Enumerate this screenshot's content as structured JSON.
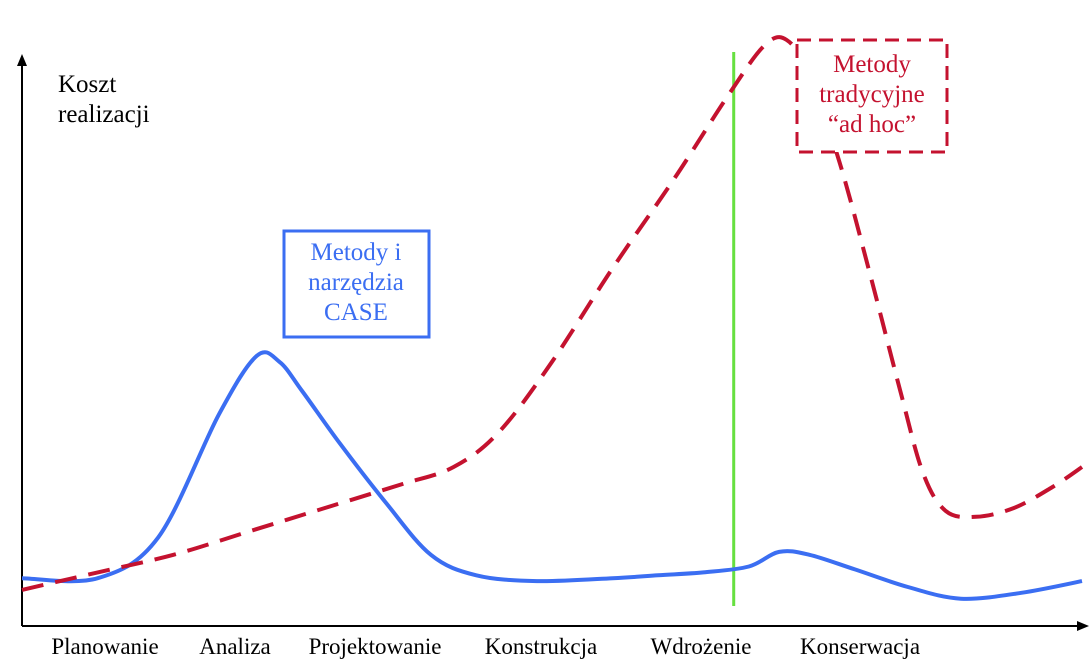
{
  "chart_data": {
    "type": "line",
    "ylabel": [
      "Koszt",
      "realizacji"
    ],
    "categories": [
      "Planowanie",
      "Analiza",
      "Projektowanie",
      "Konstrukcja",
      "Wdrożenie",
      "Konserwacja"
    ],
    "x_range": [
      0,
      7
    ],
    "y_range": [
      0,
      10
    ],
    "marker": {
      "x": 4.7,
      "color": "#66e040",
      "style": "solid"
    },
    "series": [
      {
        "name": [
          "Metody i",
          "narzędzia",
          "CASE"
        ],
        "color": "#3b6ef2",
        "style": "solid",
        "points": [
          [
            0.0,
            0.8
          ],
          [
            0.5,
            0.8
          ],
          [
            0.9,
            1.5
          ],
          [
            1.3,
            3.6
          ],
          [
            1.55,
            4.6
          ],
          [
            1.7,
            4.5
          ],
          [
            1.85,
            4.0
          ],
          [
            2.1,
            3.1
          ],
          [
            2.4,
            2.1
          ],
          [
            2.7,
            1.2
          ],
          [
            3.0,
            0.85
          ],
          [
            3.4,
            0.75
          ],
          [
            3.9,
            0.8
          ],
          [
            4.2,
            0.85
          ],
          [
            4.5,
            0.9
          ],
          [
            4.8,
            1.0
          ],
          [
            5.0,
            1.25
          ],
          [
            5.2,
            1.2
          ],
          [
            5.5,
            0.95
          ],
          [
            5.85,
            0.65
          ],
          [
            6.2,
            0.45
          ],
          [
            6.6,
            0.55
          ],
          [
            7.0,
            0.75
          ]
        ]
      },
      {
        "name": [
          "Metody",
          "tradycyjne",
          "“ad hoc”"
        ],
        "color": "#c4122f",
        "style": "dashed",
        "points": [
          [
            0.0,
            0.6
          ],
          [
            0.5,
            0.9
          ],
          [
            1.0,
            1.2
          ],
          [
            1.5,
            1.6
          ],
          [
            2.0,
            2.0
          ],
          [
            2.5,
            2.4
          ],
          [
            2.85,
            2.7
          ],
          [
            3.15,
            3.3
          ],
          [
            3.5,
            4.5
          ],
          [
            3.9,
            6.1
          ],
          [
            4.3,
            7.6
          ],
          [
            4.65,
            9.0
          ],
          [
            4.9,
            9.9
          ],
          [
            5.05,
            10.0
          ],
          [
            5.2,
            9.4
          ],
          [
            5.4,
            7.9
          ],
          [
            5.6,
            6.0
          ],
          [
            5.8,
            4.0
          ],
          [
            5.95,
            2.6
          ],
          [
            6.1,
            1.95
          ],
          [
            6.3,
            1.85
          ],
          [
            6.55,
            2.0
          ],
          [
            6.8,
            2.35
          ],
          [
            7.0,
            2.7
          ]
        ]
      }
    ]
  }
}
